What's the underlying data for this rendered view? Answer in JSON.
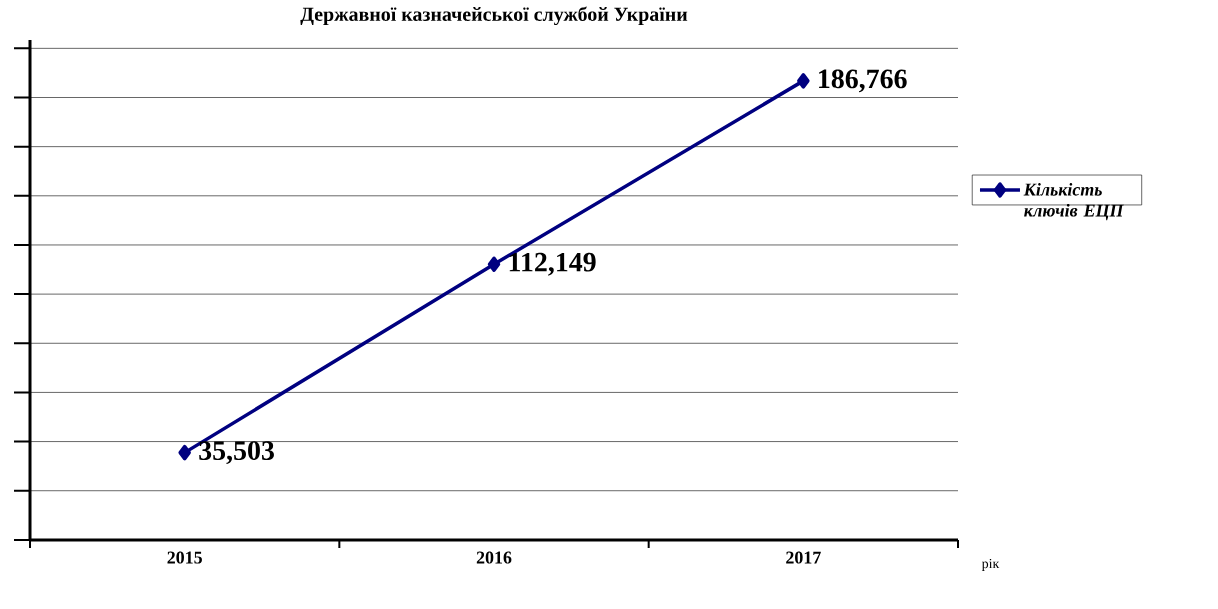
{
  "chart_data": {
    "type": "line",
    "title": "Державної казначейської службой України",
    "xlabel": "рік",
    "categories": [
      "2015",
      "2016",
      "2017"
    ],
    "series": [
      {
        "name": "Кількість ключів ЕЦП",
        "color": "#000080",
        "values": [
          35503,
          112149,
          186766
        ],
        "value_labels": [
          "35,503",
          "112,149",
          "186,766"
        ]
      }
    ],
    "tick_labels": "x",
    "grid": "y",
    "legend": "right",
    "marker": "diamond"
  }
}
